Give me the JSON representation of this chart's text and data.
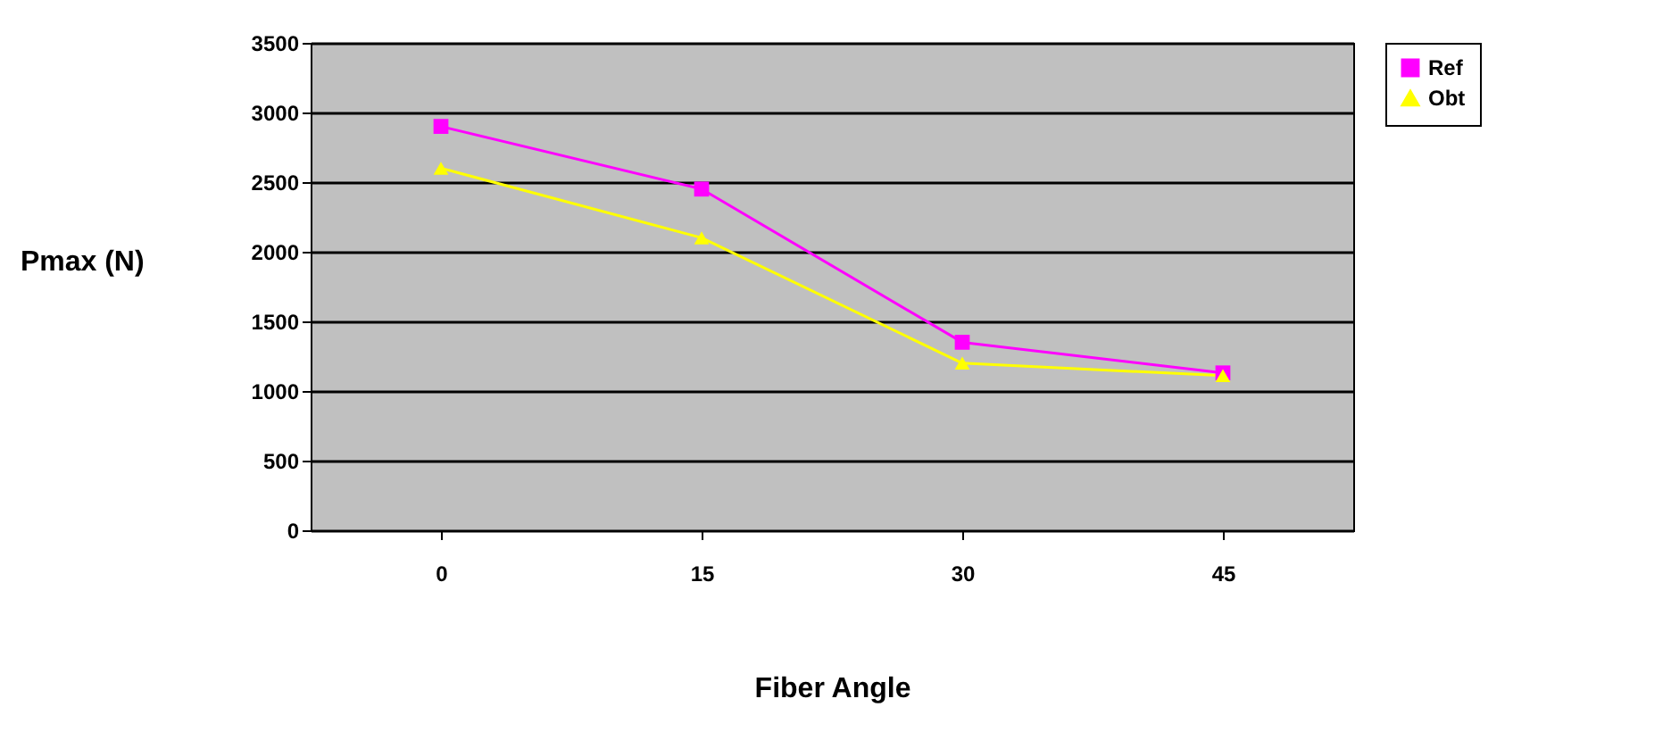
{
  "chart_data": {
    "type": "line",
    "xlabel": "Fiber Angle",
    "ylabel": "Pmax (N)",
    "categories": [
      "0",
      "15",
      "30",
      "45"
    ],
    "series": [
      {
        "name": "Ref",
        "color": "#ff00ff",
        "marker": "square",
        "values": [
          2900,
          2450,
          1350,
          1130
        ]
      },
      {
        "name": "Obt",
        "color": "#ffff00",
        "marker": "triangle",
        "values": [
          2600,
          2100,
          1200,
          1110
        ]
      }
    ],
    "ylim": [
      0,
      3500
    ],
    "yticks": [
      0,
      500,
      1000,
      1500,
      2000,
      2500,
      3000,
      3500
    ],
    "grid": "y",
    "legend": "right",
    "line_style": "solid"
  }
}
